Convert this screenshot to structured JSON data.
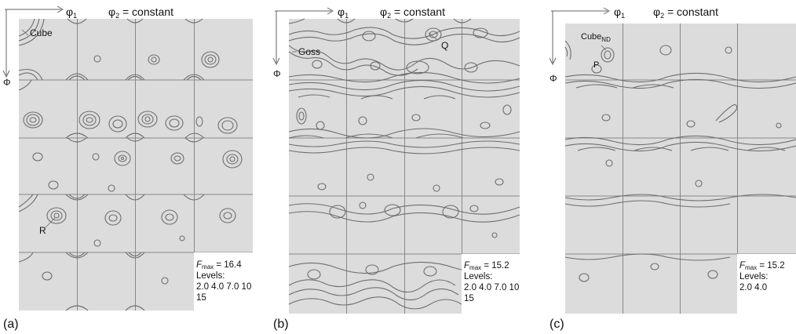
{
  "panels": [
    {
      "id": "a",
      "label": "(a)",
      "phi1_label": "φ",
      "phi1_sub": "1",
      "phi2_label": "φ",
      "phi2_sub": "2",
      "phi2_rest": " = constant",
      "Phi_label": "Φ",
      "annotations": [
        {
          "text": "Cube",
          "sub": ""
        },
        {
          "text": "R",
          "sub": ""
        }
      ],
      "legend": {
        "f": "F",
        "f_sub": "max",
        "f_value": " = 16.4",
        "levels_title": "Levels:",
        "levels_line1": "2.0 4.0 7.0 10",
        "levels_line2": "15"
      }
    },
    {
      "id": "b",
      "label": "(b)",
      "phi1_label": "φ",
      "phi1_sub": "1",
      "phi2_label": "φ",
      "phi2_sub": "2",
      "phi2_rest": " = constant",
      "Phi_label": "Φ",
      "annotations": [
        {
          "text": "Goss",
          "sub": ""
        },
        {
          "text": "Q",
          "sub": ""
        }
      ],
      "legend": {
        "f": "F",
        "f_sub": "max",
        "f_value": " = 15.2",
        "levels_title": "Levels:",
        "levels_line1": "2.0 4.0 7.0 10",
        "levels_line2": "15"
      }
    },
    {
      "id": "c",
      "label": "(c)",
      "phi1_label": "φ",
      "phi1_sub": "1",
      "phi2_label": "φ",
      "phi2_sub": "2",
      "phi2_rest": " = constant",
      "Phi_label": "Φ",
      "annotations": [
        {
          "text": "Cube",
          "sub": "ND"
        },
        {
          "text": "P",
          "sub": ""
        }
      ],
      "legend": {
        "f": "F",
        "f_sub": "max",
        "f_value": " = 15.2",
        "levels_title": "Levels:",
        "levels_line1": "2.0 4.0",
        "levels_line2": ""
      }
    }
  ],
  "colors": {
    "cell_fill": "#dcdcdc",
    "contour": "#6e6e6e",
    "grid": "#888888",
    "text": "#111111"
  }
}
